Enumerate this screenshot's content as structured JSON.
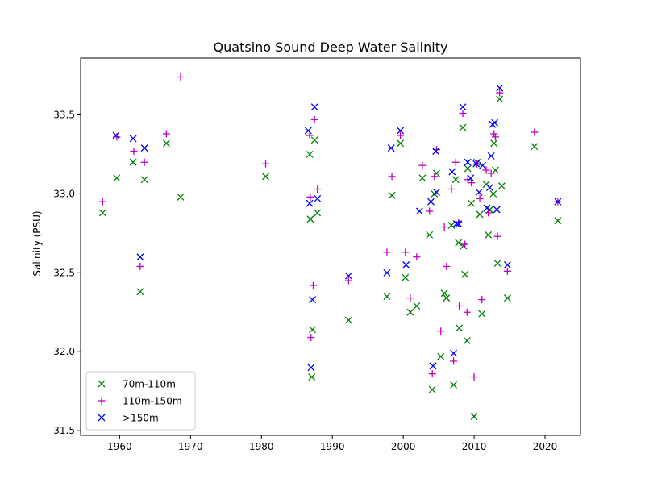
{
  "chart_data": {
    "type": "scatter",
    "title": "Quatsino Sound Deep Water Salinity",
    "xlabel": "",
    "ylabel": "Salinity (PSU)",
    "xlim": [
      1954.5,
      2025
    ],
    "ylim": [
      31.47,
      33.86
    ],
    "x_ticks": [
      1960,
      1970,
      1980,
      1990,
      2000,
      2010,
      2020
    ],
    "x_tick_labels": [
      "1960",
      "1970",
      "1980",
      "1990",
      "2000",
      "2010",
      "2020"
    ],
    "y_ticks": [
      31.5,
      32.0,
      32.5,
      33.0,
      33.5
    ],
    "y_tick_labels": [
      "31.5",
      "32.0",
      "32.5",
      "33.0",
      "33.5"
    ],
    "grid": false,
    "legend_position": "lower-left",
    "series": [
      {
        "name": "70m-110m",
        "marker": "x",
        "color": "#008000",
        "points": [
          [
            1957.6,
            32.88
          ],
          [
            1959.6,
            33.1
          ],
          [
            1961.9,
            33.2
          ],
          [
            1962.9,
            32.38
          ],
          [
            1963.5,
            33.09
          ],
          [
            1966.6,
            33.32
          ],
          [
            1968.6,
            32.98
          ],
          [
            1980.6,
            33.11
          ],
          [
            1986.8,
            33.25
          ],
          [
            1986.9,
            32.84
          ],
          [
            1987.2,
            32.14
          ],
          [
            1987.5,
            33.34
          ],
          [
            1987.9,
            32.88
          ],
          [
            1987.1,
            31.84
          ],
          [
            1992.3,
            32.2
          ],
          [
            1997.7,
            32.35
          ],
          [
            1998.4,
            32.99
          ],
          [
            1999.6,
            33.32
          ],
          [
            2000.3,
            32.47
          ],
          [
            2001.0,
            32.25
          ],
          [
            2001.9,
            32.29
          ],
          [
            2002.7,
            33.1
          ],
          [
            2003.7,
            32.74
          ],
          [
            2004.1,
            31.76
          ],
          [
            2004.4,
            33.0
          ],
          [
            2004.7,
            33.13
          ],
          [
            2005.3,
            31.97
          ],
          [
            2005.8,
            32.37
          ],
          [
            2006.1,
            32.34
          ],
          [
            2006.8,
            32.8
          ],
          [
            2007.1,
            31.79
          ],
          [
            2007.4,
            33.09
          ],
          [
            2007.8,
            32.69
          ],
          [
            2007.9,
            32.15
          ],
          [
            2008.4,
            33.42
          ],
          [
            2008.5,
            32.67
          ],
          [
            2008.7,
            32.49
          ],
          [
            2009.0,
            32.07
          ],
          [
            2009.1,
            33.16
          ],
          [
            2009.6,
            32.94
          ],
          [
            2010.0,
            31.59
          ],
          [
            2010.4,
            33.2
          ],
          [
            2010.8,
            32.87
          ],
          [
            2011.1,
            32.24
          ],
          [
            2011.7,
            33.06
          ],
          [
            2012.0,
            32.74
          ],
          [
            2012.2,
            32.9
          ],
          [
            2012.7,
            33.0
          ],
          [
            2012.8,
            33.32
          ],
          [
            2013.0,
            33.15
          ],
          [
            2013.3,
            32.56
          ],
          [
            2013.6,
            33.6
          ],
          [
            2013.9,
            33.05
          ],
          [
            2014.7,
            32.34
          ],
          [
            2018.5,
            33.3
          ],
          [
            2021.8,
            32.83
          ]
        ]
      },
      {
        "name": "110m-150m",
        "marker": "+",
        "color": "#bf00bf",
        "points": [
          [
            1957.6,
            32.95
          ],
          [
            1959.6,
            33.36
          ],
          [
            1962.0,
            33.27
          ],
          [
            1962.9,
            32.54
          ],
          [
            1963.5,
            33.2
          ],
          [
            1966.6,
            33.38
          ],
          [
            1968.6,
            33.74
          ],
          [
            1980.6,
            33.19
          ],
          [
            1986.8,
            33.37
          ],
          [
            1986.9,
            32.98
          ],
          [
            1987.0,
            32.09
          ],
          [
            1987.3,
            32.42
          ],
          [
            1987.5,
            33.47
          ],
          [
            1987.9,
            33.03
          ],
          [
            1992.3,
            32.45
          ],
          [
            1997.7,
            32.63
          ],
          [
            1998.4,
            33.11
          ],
          [
            1999.6,
            33.37
          ],
          [
            2000.3,
            32.63
          ],
          [
            2001.0,
            32.34
          ],
          [
            2001.9,
            32.6
          ],
          [
            2002.7,
            33.18
          ],
          [
            2003.7,
            32.89
          ],
          [
            2004.1,
            31.86
          ],
          [
            2004.4,
            33.11
          ],
          [
            2004.7,
            33.28
          ],
          [
            2005.3,
            32.13
          ],
          [
            2005.8,
            32.79
          ],
          [
            2006.1,
            32.54
          ],
          [
            2006.8,
            33.03
          ],
          [
            2007.1,
            31.94
          ],
          [
            2007.4,
            33.2
          ],
          [
            2007.8,
            32.82
          ],
          [
            2007.9,
            32.29
          ],
          [
            2008.4,
            33.51
          ],
          [
            2008.7,
            32.68
          ],
          [
            2009.0,
            32.25
          ],
          [
            2009.1,
            33.09
          ],
          [
            2009.6,
            33.07
          ],
          [
            2010.0,
            31.84
          ],
          [
            2010.4,
            33.19
          ],
          [
            2010.8,
            32.97
          ],
          [
            2011.1,
            32.33
          ],
          [
            2011.7,
            33.15
          ],
          [
            2012.0,
            32.88
          ],
          [
            2012.4,
            33.13
          ],
          [
            2012.8,
            33.38
          ],
          [
            2013.0,
            33.36
          ],
          [
            2013.3,
            32.73
          ],
          [
            2013.6,
            33.64
          ],
          [
            2014.7,
            32.51
          ],
          [
            2018.5,
            33.39
          ],
          [
            2021.8,
            32.95
          ]
        ]
      },
      {
        "name": ">150m",
        "marker": "x",
        "color": "#0000ff",
        "points": [
          [
            1959.5,
            33.37
          ],
          [
            1961.9,
            33.35
          ],
          [
            1962.9,
            32.6
          ],
          [
            1963.5,
            33.29
          ],
          [
            1986.6,
            33.4
          ],
          [
            1986.8,
            32.94
          ],
          [
            1987.0,
            31.9
          ],
          [
            1987.2,
            32.33
          ],
          [
            1987.5,
            33.55
          ],
          [
            1987.9,
            32.97
          ],
          [
            1992.3,
            32.48
          ],
          [
            1997.7,
            32.5
          ],
          [
            1998.3,
            33.29
          ],
          [
            1999.6,
            33.4
          ],
          [
            2000.4,
            32.55
          ],
          [
            2002.3,
            32.89
          ],
          [
            2003.9,
            32.95
          ],
          [
            2004.2,
            31.91
          ],
          [
            2004.6,
            33.27
          ],
          [
            2004.7,
            33.01
          ],
          [
            2006.9,
            33.14
          ],
          [
            2007.1,
            31.99
          ],
          [
            2007.5,
            32.81
          ],
          [
            2007.8,
            32.81
          ],
          [
            2008.4,
            33.55
          ],
          [
            2009.1,
            33.2
          ],
          [
            2009.5,
            33.1
          ],
          [
            2010.3,
            33.19
          ],
          [
            2010.7,
            33.01
          ],
          [
            2011.2,
            33.18
          ],
          [
            2011.8,
            32.91
          ],
          [
            2012.2,
            33.04
          ],
          [
            2012.4,
            33.24
          ],
          [
            2012.6,
            33.44
          ],
          [
            2012.9,
            33.45
          ],
          [
            2013.2,
            32.9
          ],
          [
            2013.6,
            33.67
          ],
          [
            2014.7,
            32.55
          ],
          [
            2021.8,
            32.95
          ]
        ]
      }
    ]
  }
}
